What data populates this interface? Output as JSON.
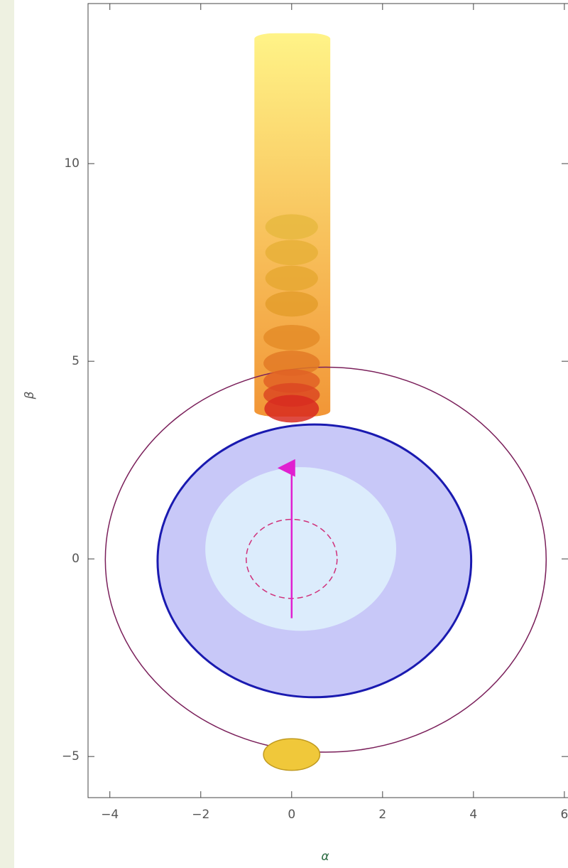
{
  "chart_data": {
    "type": "shapes",
    "xlabel": "α",
    "ylabel": "β",
    "xlim": [
      -4.48,
      6.08
    ],
    "ylim": [
      -6.04,
      14.05
    ],
    "xticks": [
      {
        "value": -4,
        "label": "−4"
      },
      {
        "value": -2,
        "label": "−2"
      },
      0,
      2,
      4,
      6
    ],
    "yticks": [
      {
        "value": -5,
        "label": "−5"
      },
      0,
      5,
      10
    ],
    "column": {
      "x0": -0.82,
      "x1": 0.85,
      "y0": 3.6,
      "y1": 13.3,
      "top_color": "#fff27a",
      "bottom_color": "#f08a20"
    },
    "shapes": [
      {
        "kind": "ellipse",
        "cx": 0.75,
        "cy": -0.02,
        "rx": 4.85,
        "ry": 4.87,
        "fill": "none",
        "stroke": "#7a1f5a"
      },
      {
        "kind": "ellipse",
        "cx": 0.5,
        "cy": -0.05,
        "rx": 3.45,
        "ry": 3.45,
        "fill": "#c8c8f8",
        "stroke": "#1a1ab0"
      },
      {
        "kind": "ellipse",
        "cx": 0.2,
        "cy": 0.25,
        "rx": 2.1,
        "ry": 2.07,
        "fill": "#dcecfc",
        "stroke": "none"
      },
      {
        "kind": "ellipse",
        "cx": 0,
        "cy": 0,
        "rx": 1,
        "ry": 1,
        "fill": "none",
        "stroke": "#d0307a",
        "dash": true
      },
      {
        "kind": "ellipse",
        "cx": 0,
        "cy": 8.4,
        "rx": 0.58,
        "ry": 0.32,
        "fill": "#e8b840",
        "stroke": "none"
      },
      {
        "kind": "ellipse",
        "cx": 0,
        "cy": 7.75,
        "rx": 0.58,
        "ry": 0.32,
        "fill": "#e8b038",
        "stroke": "none"
      },
      {
        "kind": "ellipse",
        "cx": 0,
        "cy": 7.1,
        "rx": 0.58,
        "ry": 0.32,
        "fill": "#e6a832",
        "stroke": "none"
      },
      {
        "kind": "ellipse",
        "cx": 0,
        "cy": 6.45,
        "rx": 0.58,
        "ry": 0.32,
        "fill": "#e49e2c",
        "stroke": "none"
      },
      {
        "kind": "ellipse",
        "cx": 0,
        "cy": 5.6,
        "rx": 0.62,
        "ry": 0.32,
        "fill": "#e48c28",
        "stroke": "none"
      },
      {
        "kind": "ellipse",
        "cx": 0,
        "cy": 4.95,
        "rx": 0.62,
        "ry": 0.32,
        "fill": "#e27a26",
        "stroke": "none"
      },
      {
        "kind": "ellipse",
        "cx": 0,
        "cy": 4.5,
        "rx": 0.62,
        "ry": 0.3,
        "fill": "#e06024",
        "stroke": "none"
      },
      {
        "kind": "ellipse",
        "cx": 0,
        "cy": 4.15,
        "rx": 0.62,
        "ry": 0.3,
        "fill": "#dc4822",
        "stroke": "none"
      },
      {
        "kind": "ellipse",
        "cx": 0,
        "cy": 3.8,
        "rx": 0.6,
        "ry": 0.35,
        "fill": "#d82a20",
        "stroke": "none"
      },
      {
        "kind": "ellipse",
        "cx": 0,
        "cy": -4.95,
        "rx": 0.62,
        "ry": 0.4,
        "fill": "#f0c83a",
        "stroke": "#c09a20"
      }
    ],
    "arrow": {
      "x": 0,
      "y0": -1.5,
      "y1": 2.3,
      "color": "#e020d0"
    }
  }
}
